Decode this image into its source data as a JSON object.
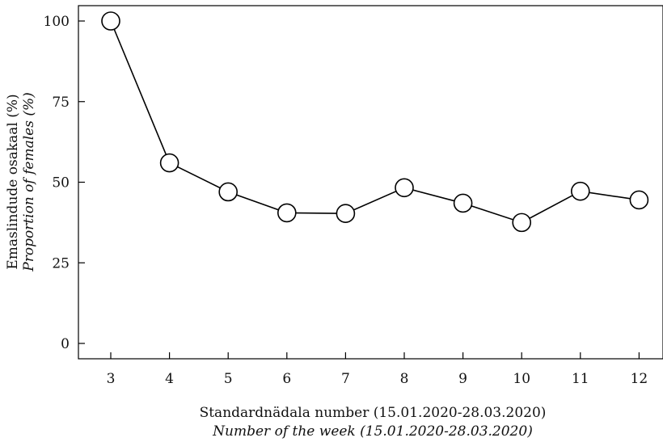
{
  "chart_data": {
    "type": "line",
    "x": [
      3,
      4,
      5,
      6,
      7,
      8,
      9,
      10,
      11,
      12
    ],
    "series": [
      {
        "values": [
          100,
          56,
          47,
          40.5,
          40.3,
          48.3,
          43.5,
          37.5,
          47.2,
          44.5
        ]
      }
    ],
    "xlabel": "Standardnädala number (15.01.2020-28.03.2020)",
    "xlabel_secondary": "Number of the week (15.01.2020-28.03.2020)",
    "ylabel": "Emaslindude osakaal (%)",
    "ylabel_secondary": "Proportion of females (%)",
    "x_ticks": [
      "3",
      "4",
      "5",
      "6",
      "7",
      "8",
      "9",
      "10",
      "11",
      "12"
    ],
    "y_ticks": [
      "0",
      "25",
      "50",
      "75",
      "100"
    ],
    "y_tick_values": [
      0,
      25,
      50,
      75,
      100
    ],
    "ylim": [
      0,
      100
    ],
    "grid": false,
    "marker": "open-circle",
    "colors": {
      "line": "#000000",
      "marker_fill": "#ffffff",
      "axis": "#000000"
    }
  }
}
